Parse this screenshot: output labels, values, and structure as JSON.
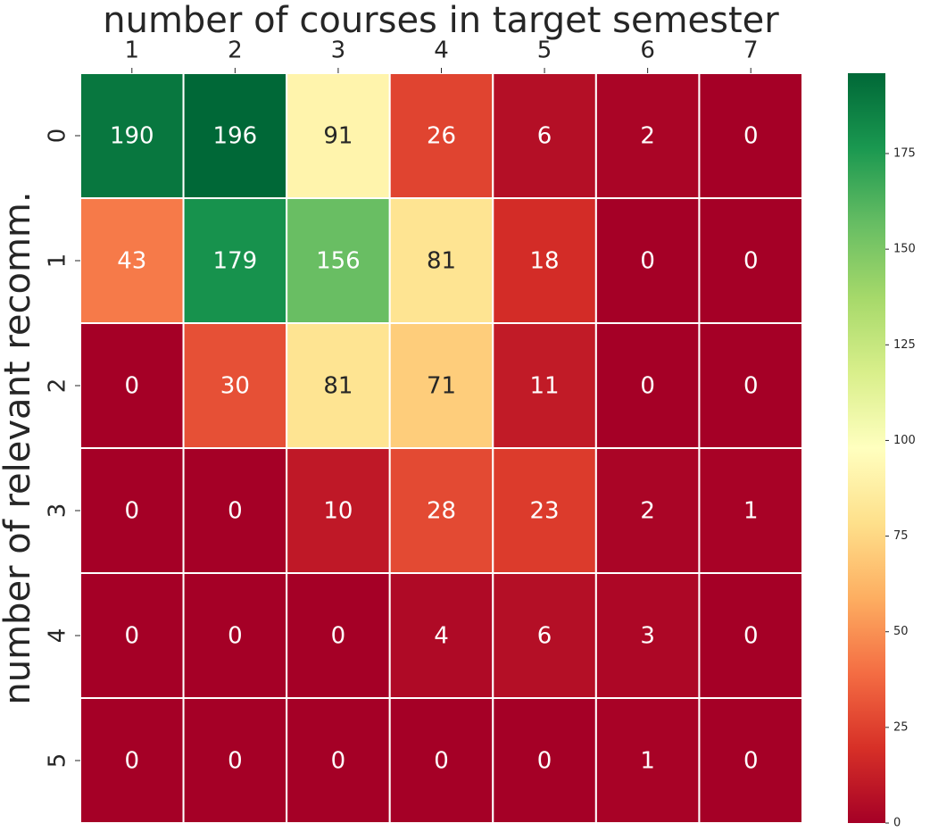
{
  "chart_data": {
    "type": "heatmap",
    "title": "number of courses in target semester",
    "ylabel": "number of relevant recomm.",
    "x_categories": [
      1,
      2,
      3,
      4,
      5,
      6,
      7
    ],
    "y_categories": [
      0,
      1,
      2,
      3,
      4,
      5
    ],
    "values": [
      [
        190,
        196,
        91,
        26,
        6,
        2,
        0
      ],
      [
        43,
        179,
        156,
        81,
        18,
        0,
        0
      ],
      [
        0,
        30,
        81,
        71,
        11,
        0,
        0
      ],
      [
        0,
        0,
        10,
        28,
        23,
        2,
        1
      ],
      [
        0,
        0,
        0,
        4,
        6,
        3,
        0
      ],
      [
        0,
        0,
        0,
        0,
        0,
        1,
        0
      ]
    ],
    "colormap": [
      "#a50026",
      "#d73027",
      "#f46d43",
      "#fdae61",
      "#fee08b",
      "#ffffbf",
      "#d9ef8b",
      "#a6d96a",
      "#66bd63",
      "#1a9850",
      "#006837"
    ],
    "colorbar_lim": [
      0,
      196
    ],
    "colorbar_ticks": [
      0,
      25,
      50,
      75,
      100,
      125,
      150,
      175
    ]
  }
}
